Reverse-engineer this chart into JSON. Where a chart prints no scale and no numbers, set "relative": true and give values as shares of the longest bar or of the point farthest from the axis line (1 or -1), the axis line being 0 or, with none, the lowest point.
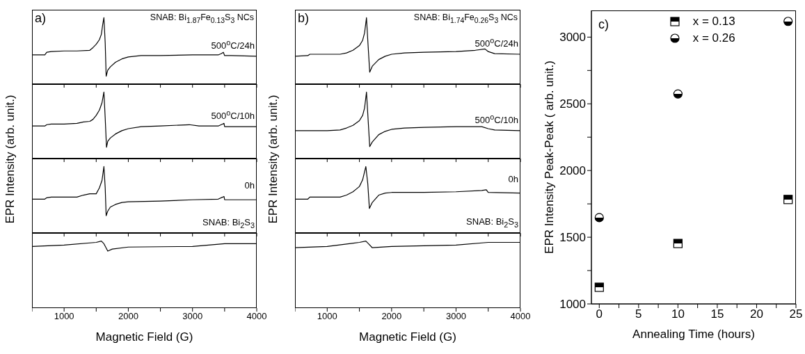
{
  "chart_data": [
    {
      "type": "line",
      "relative": true,
      "xlim": [
        500,
        4000
      ],
      "xticks": [
        {
          "value": 500,
          "label": null
        },
        1000,
        {
          "value": 1500,
          "label": null
        },
        2000,
        {
          "value": 2500,
          "label": null
        },
        3000,
        {
          "value": 3500,
          "label": null
        },
        4000
      ],
      "tick_labels": false,
      "title": "SNAB: Bi$_{1.87}$Fe$_{0.13}$S$_{3}$ NCs",
      "annotations": [
        "a)"
      ],
      "ylabel": "EPR Intensity (arb. unit.)",
      "series": [
        {
          "name": "500$^{o}$C/24h",
          "color": "#000000",
          "x": [
            500,
            700,
            730,
            800,
            1000,
            1200,
            1400,
            1450,
            1500,
            1550,
            1580,
            1600,
            1620,
            1640,
            1655,
            1680,
            1720,
            1800,
            1900,
            2000,
            2200,
            2500,
            3000,
            3400,
            3450,
            3480,
            3500,
            3600,
            4000
          ],
          "values": [
            0.44,
            0.44,
            0.48,
            0.49,
            0.5,
            0.5,
            0.51,
            0.55,
            0.6,
            0.67,
            0.75,
            0.89,
            1,
            0.62,
            0.12,
            0.21,
            0.26,
            0.33,
            0.38,
            0.41,
            0.43,
            0.43,
            0.44,
            0.44,
            0.46,
            0.48,
            0.43,
            0.43,
            0.42
          ]
        }
      ]
    },
    {
      "type": "line",
      "relative": true,
      "xlim": [
        500,
        4000
      ],
      "xticks": [
        {
          "value": 500,
          "label": null
        },
        1000,
        {
          "value": 1500,
          "label": null
        },
        2000,
        {
          "value": 2500,
          "label": null
        },
        3000,
        {
          "value": 3500,
          "label": null
        },
        4000
      ],
      "tick_labels": false,
      "series": [
        {
          "name": "500$^{o}$C/10h",
          "color": "#000000",
          "x": [
            500,
            700,
            730,
            800,
            1000,
            1200,
            1300,
            1400,
            1450,
            1500,
            1550,
            1590,
            1620,
            1640,
            1660,
            1680,
            1720,
            1800,
            1900,
            2000,
            2200,
            2500,
            2950,
            3100,
            3400,
            3470,
            3490,
            3500,
            4000
          ],
          "values": [
            0.49,
            0.49,
            0.51,
            0.52,
            0.52,
            0.53,
            0.55,
            0.56,
            0.59,
            0.65,
            0.73,
            0.84,
            1,
            0.61,
            0.17,
            0.26,
            0.31,
            0.37,
            0.42,
            0.45,
            0.48,
            0.49,
            0.51,
            0.49,
            0.49,
            0.52,
            0.53,
            0.48,
            0.48
          ]
        }
      ]
    },
    {
      "type": "line",
      "relative": true,
      "xlim": [
        500,
        4000
      ],
      "xticks": [
        {
          "value": 500,
          "label": null
        },
        1000,
        {
          "value": 1500,
          "label": null
        },
        2000,
        {
          "value": 2500,
          "label": null
        },
        3000,
        {
          "value": 3500,
          "label": null
        },
        4000
      ],
      "tick_labels": false,
      "series": [
        {
          "name": "0h",
          "color": "#000000",
          "x": [
            500,
            700,
            730,
            800,
            1000,
            1200,
            1300,
            1400,
            1500,
            1550,
            1590,
            1620,
            1640,
            1655,
            1680,
            1720,
            1800,
            1900,
            2000,
            2500,
            3000,
            3400,
            3470,
            3490,
            3500,
            4000
          ],
          "values": [
            0.51,
            0.51,
            0.53,
            0.54,
            0.54,
            0.54,
            0.57,
            0.59,
            0.59,
            0.68,
            0.79,
            1,
            0.68,
            0.26,
            0.33,
            0.39,
            0.43,
            0.46,
            0.47,
            0.48,
            0.5,
            0.51,
            0.54,
            0.55,
            0.5,
            0.5
          ]
        }
      ]
    },
    {
      "type": "line",
      "relative": true,
      "xlim": [
        500,
        4000
      ],
      "xticks": [
        {
          "value": 500,
          "label": null
        },
        1000,
        {
          "value": 1500,
          "label": null
        },
        2000,
        {
          "value": 2500,
          "label": null
        },
        3000,
        {
          "value": 3500,
          "label": null
        },
        4000
      ],
      "xlabel": "Magnetic Field (G)",
      "series": [
        {
          "name": "SNAB: Bi$_{2}$S$_{3}$",
          "color": "#000000",
          "x": [
            500,
            1000,
            1500,
            1580,
            1620,
            1680,
            1750,
            2000,
            3000,
            3500,
            4000
          ],
          "values": [
            0.92,
            0.94,
            0.98,
            1,
            0.96,
            0.85,
            0.88,
            0.91,
            0.92,
            0.96,
            0.96
          ]
        }
      ]
    },
    {
      "type": "line",
      "relative": true,
      "xlim": [
        500,
        4000
      ],
      "xticks": [
        {
          "value": 500,
          "label": null
        },
        1000,
        {
          "value": 1500,
          "label": null
        },
        2000,
        {
          "value": 2500,
          "label": null
        },
        3000,
        {
          "value": 3500,
          "label": null
        },
        4000
      ],
      "tick_labels": false,
      "title": "SNAB: Bi$_{1.74}$Fe$_{0.26}$S$_{3}$ NCs",
      "annotations": [
        "b)"
      ],
      "ylabel": "EPR Intensity (arb. unit.)",
      "series": [
        {
          "name": "500$^{o}$C/24h",
          "color": "#000000",
          "x": [
            500,
            700,
            730,
            1000,
            1200,
            1300,
            1400,
            1500,
            1550,
            1580,
            1610,
            1630,
            1660,
            1700,
            1800,
            1900,
            2000,
            2200,
            2500,
            3000,
            3300,
            3450,
            3500,
            3600,
            4000
          ],
          "values": [
            0.42,
            0.43,
            0.45,
            0.45,
            0.45,
            0.47,
            0.51,
            0.58,
            0.66,
            0.77,
            1,
            0.66,
            0.18,
            0.27,
            0.37,
            0.42,
            0.45,
            0.47,
            0.48,
            0.49,
            0.51,
            0.53,
            0.49,
            0.46,
            0.45
          ]
        }
      ]
    },
    {
      "type": "line",
      "relative": true,
      "xlim": [
        500,
        4000
      ],
      "xticks": [
        {
          "value": 500,
          "label": null
        },
        1000,
        {
          "value": 1500,
          "label": null
        },
        2000,
        {
          "value": 2500,
          "label": null
        },
        3000,
        {
          "value": 3500,
          "label": null
        },
        4000
      ],
      "tick_labels": false,
      "series": [
        {
          "name": "500$^{o}$C/10h",
          "color": "#000000",
          "x": [
            500,
            1000,
            1200,
            1300,
            1400,
            1500,
            1550,
            1580,
            1610,
            1630,
            1660,
            1700,
            1800,
            1900,
            2000,
            2200,
            2500,
            3000,
            3400,
            3500,
            3600,
            4000
          ],
          "values": [
            0.42,
            0.42,
            0.43,
            0.46,
            0.5,
            0.57,
            0.65,
            0.76,
            1,
            0.67,
            0.18,
            0.25,
            0.36,
            0.41,
            0.44,
            0.46,
            0.47,
            0.48,
            0.48,
            0.45,
            0.43,
            0.42
          ]
        }
      ]
    },
    {
      "type": "line",
      "relative": true,
      "xlim": [
        500,
        4000
      ],
      "xticks": [
        {
          "value": 500,
          "label": null
        },
        1000,
        {
          "value": 1500,
          "label": null
        },
        2000,
        {
          "value": 2500,
          "label": null
        },
        3000,
        {
          "value": 3500,
          "label": null
        },
        4000
      ],
      "tick_labels": false,
      "series": [
        {
          "name": "0h",
          "color": "#000000",
          "x": [
            500,
            700,
            730,
            1000,
            1200,
            1300,
            1400,
            1500,
            1550,
            1600,
            1630,
            1655,
            1700,
            1800,
            1900,
            2000,
            2500,
            3000,
            3400,
            3470,
            3500,
            4000
          ],
          "values": [
            0.51,
            0.51,
            0.54,
            0.54,
            0.54,
            0.57,
            0.62,
            0.7,
            0.8,
            1,
            0.74,
            0.37,
            0.46,
            0.57,
            0.6,
            0.61,
            0.61,
            0.62,
            0.64,
            0.65,
            0.61,
            0.6
          ]
        }
      ]
    },
    {
      "type": "line",
      "relative": true,
      "xlim": [
        500,
        4000
      ],
      "xticks": [
        {
          "value": 500,
          "label": null
        },
        1000,
        {
          "value": 1500,
          "label": null
        },
        2000,
        {
          "value": 2500,
          "label": null
        },
        3000,
        {
          "value": 3500,
          "label": null
        },
        4000
      ],
      "xlabel": "Magnetic Field (G)",
      "series": [
        {
          "name": "SNAB: Bi$_{2}$S$_{3}$",
          "color": "#000000",
          "x": [
            500,
            1000,
            1500,
            1600,
            1640,
            1700,
            2000,
            3000,
            3500,
            4000
          ],
          "values": [
            0.9,
            0.92,
            0.98,
            1,
            0.96,
            0.9,
            0.92,
            0.94,
            0.98,
            0.98
          ]
        }
      ]
    },
    {
      "type": "scatter",
      "xlim": [
        -1,
        25
      ],
      "ylim": [
        1000,
        3200
      ],
      "xticks": [
        0,
        {
          "value": 2.5,
          "label": null
        },
        5,
        {
          "value": 7.5,
          "label": null
        },
        10,
        {
          "value": 12.5,
          "label": null
        },
        15,
        {
          "value": 17.5,
          "label": null
        },
        20,
        {
          "value": 22.5,
          "label": null
        },
        25
      ],
      "yticks": [
        1000,
        {
          "value": 1250,
          "label": null
        },
        1500,
        {
          "value": 1750,
          "label": null
        },
        2000,
        {
          "value": 2250,
          "label": null
        },
        2500,
        {
          "value": 2750,
          "label": null
        },
        3000
      ],
      "xlabel": "Annealing Time (hours)",
      "ylabel": "EPR Intensity Peak-Peak ( arb. unit.)",
      "annotations": [
        "c)"
      ],
      "legend": "top",
      "series": [
        {
          "name": "x = 0.13",
          "color": "#000000",
          "marker": "square",
          "x": [
            0,
            10,
            24
          ],
          "values": [
            1125,
            1453,
            1783
          ]
        },
        {
          "name": "x = 0.26",
          "color": "#000000",
          "marker": "circle",
          "x": [
            0,
            10,
            24
          ],
          "values": [
            1647,
            2574,
            3118
          ]
        }
      ]
    }
  ]
}
